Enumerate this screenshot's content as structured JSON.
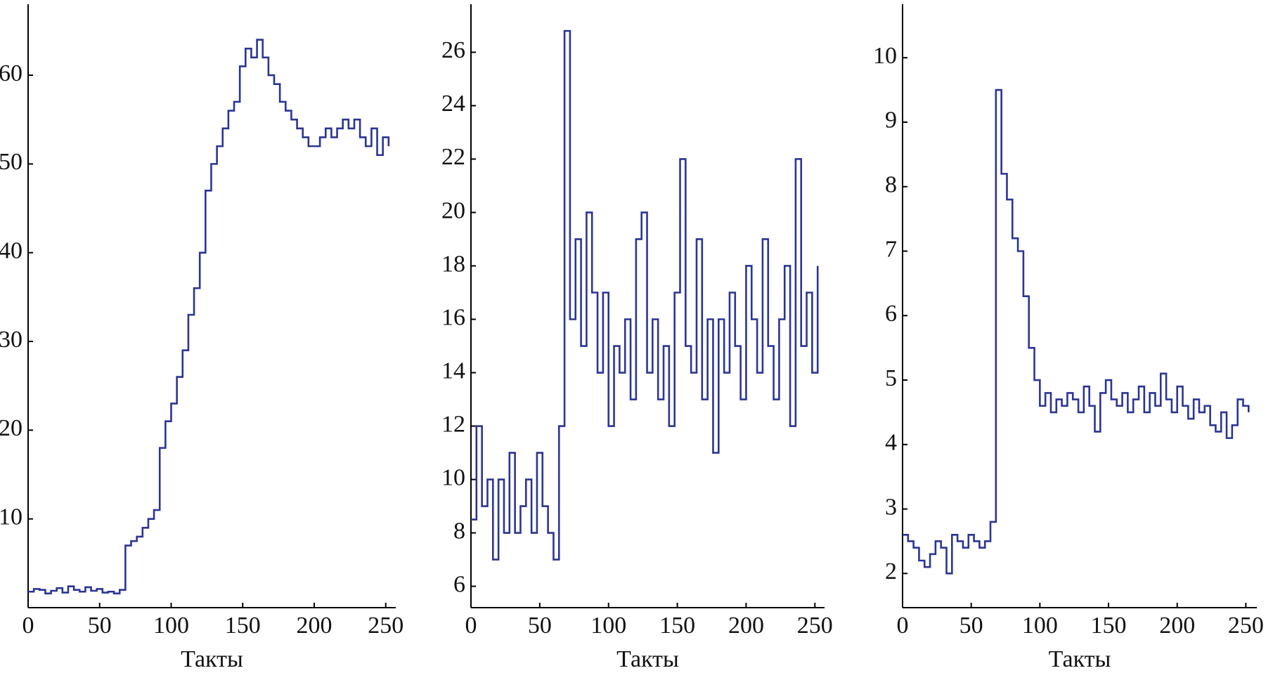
{
  "chart_data": [
    {
      "type": "step",
      "xlabel": "Такты",
      "color": "#2b3595",
      "x": [
        0,
        4,
        8,
        12,
        16,
        20,
        24,
        28,
        32,
        36,
        40,
        44,
        48,
        52,
        56,
        60,
        64,
        68,
        72,
        76,
        80,
        84,
        88,
        92,
        96,
        100,
        104,
        108,
        112,
        116,
        120,
        124,
        128,
        132,
        136,
        140,
        144,
        148,
        152,
        156,
        160,
        164,
        168,
        172,
        176,
        180,
        184,
        188,
        192,
        196,
        200,
        204,
        208,
        212,
        216,
        220,
        224,
        228,
        232,
        236,
        240,
        244,
        248,
        252
      ],
      "values": [
        1.8,
        2.1,
        2.0,
        1.6,
        1.9,
        2.2,
        1.7,
        2.4,
        2.0,
        1.8,
        2.3,
        1.9,
        2.1,
        1.7,
        1.8,
        1.6,
        2.0,
        7,
        7.5,
        8,
        9,
        10,
        11,
        18,
        21,
        23,
        26,
        29,
        33,
        36,
        40,
        47,
        50,
        52,
        54,
        56,
        57,
        61,
        63,
        62,
        64,
        62,
        60,
        59,
        57,
        56,
        55,
        54,
        53,
        52,
        52,
        53,
        54,
        53,
        54,
        55,
        54,
        55,
        53,
        52,
        54,
        51,
        53,
        52
      ],
      "xlim": [
        0,
        257
      ],
      "ylim": [
        0,
        68
      ],
      "xticks": [
        0,
        50,
        100,
        150,
        200,
        250
      ],
      "yticks": [
        10,
        20,
        30,
        40,
        50,
        60
      ]
    },
    {
      "type": "step",
      "xlabel": "Такты",
      "color": "#2b3595",
      "x": [
        0,
        4,
        8,
        12,
        16,
        20,
        24,
        28,
        32,
        36,
        40,
        44,
        48,
        52,
        56,
        60,
        64,
        68,
        72,
        76,
        80,
        84,
        88,
        92,
        96,
        100,
        104,
        108,
        112,
        116,
        120,
        124,
        128,
        132,
        136,
        140,
        144,
        148,
        152,
        156,
        160,
        164,
        168,
        172,
        176,
        180,
        184,
        188,
        192,
        196,
        200,
        204,
        208,
        212,
        216,
        220,
        224,
        228,
        232,
        236,
        240,
        244,
        248,
        252
      ],
      "values": [
        8.5,
        12,
        9,
        10,
        7,
        10,
        8,
        11,
        8,
        9,
        10,
        8,
        11,
        9,
        8,
        7,
        12,
        26.8,
        16,
        19,
        15,
        20,
        17,
        14,
        17,
        12,
        15,
        14,
        16,
        13,
        19,
        20,
        14,
        16,
        13,
        15,
        12,
        17,
        22,
        15,
        14,
        19,
        13,
        16,
        11,
        16,
        14,
        17,
        15,
        13,
        18,
        16,
        14,
        19,
        15,
        13,
        16,
        18,
        12,
        22,
        15,
        17,
        14,
        18
      ],
      "xlim": [
        0,
        257
      ],
      "ylim": [
        5.2,
        27.8
      ],
      "xticks": [
        0,
        50,
        100,
        150,
        200,
        250
      ],
      "yticks": [
        6,
        8,
        10,
        12,
        14,
        16,
        18,
        20,
        22,
        24,
        26
      ]
    },
    {
      "type": "step",
      "xlabel": "Такты",
      "color": "#2b3595",
      "x": [
        0,
        4,
        8,
        12,
        16,
        20,
        24,
        28,
        32,
        36,
        40,
        44,
        48,
        52,
        56,
        60,
        64,
        68,
        72,
        76,
        80,
        84,
        88,
        92,
        96,
        100,
        104,
        108,
        112,
        116,
        120,
        124,
        128,
        132,
        136,
        140,
        144,
        148,
        152,
        156,
        160,
        164,
        168,
        172,
        176,
        180,
        184,
        188,
        192,
        196,
        200,
        204,
        208,
        212,
        216,
        220,
        224,
        228,
        232,
        236,
        240,
        244,
        248,
        252
      ],
      "values": [
        2.6,
        2.5,
        2.4,
        2.2,
        2.1,
        2.3,
        2.5,
        2.4,
        2.0,
        2.6,
        2.5,
        2.4,
        2.6,
        2.5,
        2.4,
        2.5,
        2.8,
        9.5,
        8.2,
        7.8,
        7.2,
        7.0,
        6.3,
        5.5,
        5.0,
        4.6,
        4.8,
        4.5,
        4.7,
        4.6,
        4.8,
        4.7,
        4.5,
        4.9,
        4.6,
        4.2,
        4.8,
        5.0,
        4.7,
        4.6,
        4.8,
        4.5,
        4.7,
        4.9,
        4.5,
        4.8,
        4.6,
        5.1,
        4.7,
        4.5,
        4.9,
        4.6,
        4.4,
        4.7,
        4.5,
        4.6,
        4.3,
        4.2,
        4.5,
        4.1,
        4.3,
        4.7,
        4.6,
        4.5
      ],
      "xlim": [
        0,
        258
      ],
      "ylim": [
        1.47,
        10.83
      ],
      "xticks": [
        0,
        50,
        100,
        150,
        200,
        250
      ],
      "yticks": [
        2,
        3,
        4,
        5,
        6,
        7,
        8,
        9,
        10
      ]
    }
  ]
}
